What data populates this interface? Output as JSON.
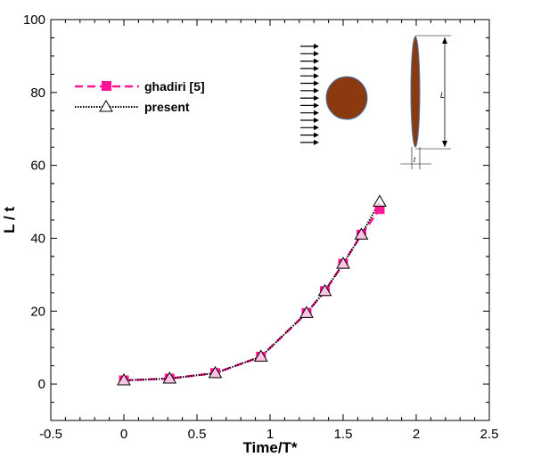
{
  "chart_data": {
    "type": "line",
    "title": "",
    "xlabel": "Time/T*",
    "ylabel": "L / t",
    "xlim": [
      -0.5,
      2.5
    ],
    "ylim": [
      -10,
      100
    ],
    "xticks": [
      "-0.5",
      "0",
      "0.5",
      "1",
      "1.5",
      "2",
      "2.5"
    ],
    "xtick_values": [
      -0.5,
      0,
      0.5,
      1,
      1.5,
      2,
      2.5
    ],
    "yticks": [
      "0",
      "20",
      "40",
      "60",
      "80",
      "100"
    ],
    "ytick_values": [
      0,
      20,
      40,
      60,
      80,
      100
    ],
    "grid": false,
    "legend_position": "top-left",
    "series": [
      {
        "name": "ghadiri [5]",
        "color": "#ff1493",
        "marker": "square",
        "line": "dashed",
        "x": [
          0,
          0.3125,
          0.625,
          0.9375,
          1.25,
          1.375,
          1.5,
          1.625,
          1.75
        ],
        "y": [
          1,
          1.5,
          3,
          7.5,
          19.5,
          25.5,
          33,
          41,
          48
        ]
      },
      {
        "name": "present",
        "color": "#000000",
        "marker": "triangle",
        "line": "dotted",
        "x": [
          0,
          0.3125,
          0.625,
          0.9375,
          1.25,
          1.375,
          1.5,
          1.625,
          1.75
        ],
        "y": [
          1,
          1.5,
          3,
          7.5,
          19.5,
          25.5,
          33,
          41,
          50
        ]
      }
    ],
    "inset": {
      "length_label": "L",
      "thickness_label": "t",
      "body_color": "#8b3a0f"
    }
  }
}
